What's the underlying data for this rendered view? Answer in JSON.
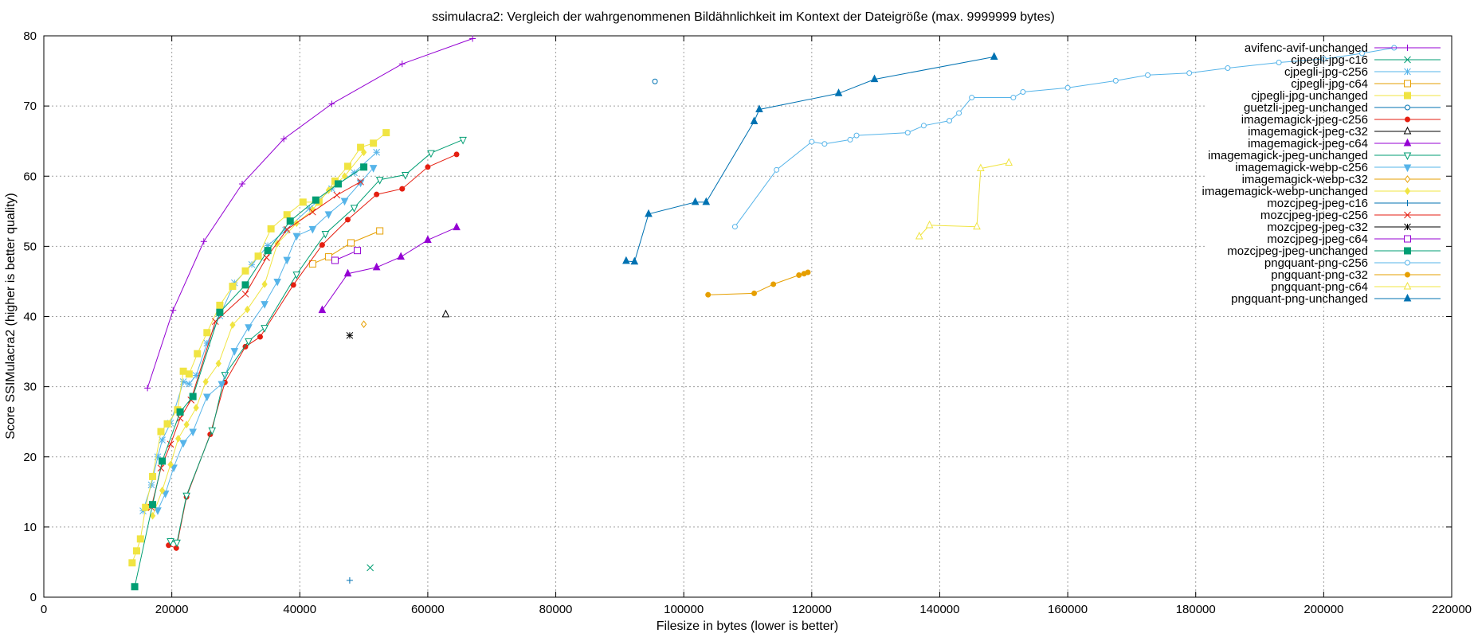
{
  "chart_data": {
    "type": "line",
    "title": "ssimulacra2: Vergleich der wahrgenommenen Bildähnlichkeit im Kontext der Dateigröße (max. 9999999 bytes)",
    "xlabel": "Filesize in bytes (lower is better)",
    "ylabel": "Score SSIMulacra2 (higher is better quality)",
    "xlim": [
      0,
      220000
    ],
    "ylim": [
      0,
      80
    ],
    "xticks": [
      0,
      20000,
      40000,
      60000,
      80000,
      100000,
      120000,
      140000,
      160000,
      180000,
      200000,
      220000
    ],
    "yticks": [
      0,
      10,
      20,
      30,
      40,
      50,
      60,
      70,
      80
    ],
    "grid": true,
    "legend_position": "top-right",
    "series": [
      {
        "name": "avifenc-avif-unchanged",
        "color": "#9400d3",
        "marker": "plus",
        "x": [
          16200,
          20200,
          25000,
          31000,
          37500,
          45000,
          56000,
          67000
        ],
        "y": [
          29.8,
          40.9,
          50.7,
          58.9,
          65.3,
          70.3,
          76.0,
          79.6
        ]
      },
      {
        "name": "cjpegli-jpg-c16",
        "color": "#009e73",
        "marker": "cross",
        "x": [
          51000
        ],
        "y": [
          4.2
        ]
      },
      {
        "name": "cjpegli-jpg-c256",
        "color": "#56b4e9",
        "marker": "star",
        "x": [
          15500,
          16800,
          17800,
          18500,
          19800,
          21800,
          22700,
          23800,
          25500,
          27500,
          29800,
          32500,
          35000,
          37800,
          41500,
          45000,
          48500,
          52000
        ],
        "y": [
          12.3,
          16.0,
          20.0,
          22.4,
          24.8,
          30.7,
          30.4,
          31.6,
          36.2,
          40.1,
          44.8,
          47.4,
          50.1,
          52.3,
          55.4,
          58.2,
          60.5,
          63.4
        ]
      },
      {
        "name": "cjpegli-jpg-c64",
        "color": "#e69f00",
        "marker": "square-open",
        "x": [
          42000,
          44500,
          48000,
          52500
        ],
        "y": [
          47.5,
          48.5,
          50.5,
          52.2
        ]
      },
      {
        "name": "cjpegli-jpg-unchanged",
        "color": "#f0e442",
        "marker": "square",
        "x": [
          13800,
          14500,
          15100,
          15900,
          17000,
          18300,
          19300,
          20900,
          21800,
          22700,
          24000,
          25500,
          27500,
          29500,
          31500,
          33500,
          35500,
          38000,
          40500,
          43000,
          45500,
          47500,
          49500,
          51500,
          53500
        ],
        "y": [
          4.9,
          6.6,
          8.3,
          12.8,
          17.2,
          23.6,
          24.7,
          26.7,
          32.2,
          31.8,
          34.7,
          37.7,
          41.6,
          44.3,
          46.5,
          48.6,
          52.5,
          54.5,
          56.3,
          56.3,
          59.3,
          61.4,
          64.1,
          64.7,
          66.2
        ]
      },
      {
        "name": "guetzli-jpeg-unchanged",
        "color": "#0072b2",
        "marker": "circle-open",
        "x": [
          95500
        ],
        "y": [
          73.5
        ]
      },
      {
        "name": "imagemagick-jpeg-c256",
        "color": "#e51e10",
        "marker": "circle",
        "x": [
          19500,
          20700,
          22300,
          26000,
          28300,
          31500,
          33800,
          39000,
          43500,
          47500,
          52000,
          56000,
          60000,
          64500
        ],
        "y": [
          7.4,
          7.0,
          14.3,
          23.2,
          30.6,
          35.7,
          37.1,
          44.5,
          50.2,
          53.8,
          57.4,
          58.2,
          61.3,
          63.1
        ]
      },
      {
        "name": "imagemagick-jpeg-c32",
        "color": "#000000",
        "marker": "triangle-open",
        "x": [
          62800
        ],
        "y": [
          40.3
        ]
      },
      {
        "name": "imagemagick-jpeg-c64",
        "color": "#9400d3",
        "marker": "triangle",
        "x": [
          43500,
          47500,
          52000,
          55800,
          60000,
          64500
        ],
        "y": [
          40.9,
          46.1,
          47.0,
          48.5,
          50.9,
          52.7
        ]
      },
      {
        "name": "imagemagick-jpeg-unchanged",
        "color": "#009e73",
        "marker": "triangle-down-open",
        "x": [
          19800,
          20800,
          22300,
          26300,
          28300,
          32000,
          34500,
          39500,
          44000,
          48500,
          52500,
          56500,
          60500,
          65500
        ],
        "y": [
          8.0,
          7.8,
          14.5,
          23.8,
          31.7,
          36.5,
          38.4,
          46.0,
          51.8,
          55.5,
          59.5,
          60.2,
          63.3,
          65.2
        ]
      },
      {
        "name": "imagemagick-webp-c256",
        "color": "#56b4e9",
        "marker": "triangle-down",
        "x": [
          17800,
          19000,
          20300,
          21800,
          23300,
          25500,
          27800,
          29800,
          32000,
          34500,
          36500,
          38000,
          39500,
          42000,
          44500,
          47000,
          49500,
          51500
        ],
        "y": [
          12.4,
          14.8,
          18.5,
          22.0,
          23.6,
          28.6,
          30.4,
          35.1,
          38.5,
          41.8,
          45.0,
          48.1,
          51.5,
          52.5,
          54.6,
          56.5,
          59.1,
          61.2
        ]
      },
      {
        "name": "imagemagick-webp-c32",
        "color": "#e69f00",
        "marker": "diamond-open",
        "x": [
          50000
        ],
        "y": [
          38.9
        ]
      },
      {
        "name": "imagemagick-webp-unchanged",
        "color": "#f0e442",
        "marker": "diamond",
        "x": [
          17000,
          18500,
          19800,
          21000,
          22300,
          23800,
          25300,
          27300,
          29500,
          31800,
          34500,
          36500,
          39500,
          42000,
          44500,
          47000,
          50000
        ],
        "y": [
          11.6,
          15.2,
          18.9,
          22.6,
          24.6,
          27.0,
          30.7,
          33.3,
          38.8,
          41.0,
          44.6,
          50.4,
          53.3,
          55.2,
          58.0,
          60.0,
          63.4
        ]
      },
      {
        "name": "mozcjpeg-jpeg-c16",
        "color": "#0072b2",
        "marker": "plus",
        "x": [
          47800
        ],
        "y": [
          2.4
        ]
      },
      {
        "name": "mozcjpeg-jpeg-c256",
        "color": "#e51e10",
        "marker": "cross",
        "x": [
          16800,
          18300,
          19800,
          21300,
          23000,
          26800,
          31500,
          34800,
          38000,
          42000,
          45800,
          49500
        ],
        "y": [
          12.8,
          18.4,
          21.8,
          25.5,
          28.1,
          39.3,
          43.2,
          48.4,
          52.4,
          54.9,
          57.3,
          59.2
        ]
      },
      {
        "name": "mozcjpeg-jpeg-c32",
        "color": "#000000",
        "marker": "star",
        "x": [
          47800
        ],
        "y": [
          37.3
        ]
      },
      {
        "name": "mozcjpeg-jpeg-c64",
        "color": "#9400d3",
        "marker": "square-open",
        "x": [
          45500,
          49000
        ],
        "y": [
          48.0,
          49.4
        ]
      },
      {
        "name": "mozcjpeg-jpeg-unchanged",
        "color": "#009e73",
        "marker": "square",
        "x": [
          14200,
          17000,
          18500,
          21300,
          23300,
          27500,
          31500,
          35000,
          38500,
          42500,
          46000,
          50000
        ],
        "y": [
          1.5,
          13.2,
          19.4,
          26.4,
          28.6,
          40.6,
          44.5,
          49.4,
          53.6,
          56.6,
          58.9,
          61.3
        ]
      },
      {
        "name": "pngquant-png-c256",
        "color": "#56b4e9",
        "marker": "circle-open",
        "x": [
          108000,
          114500,
          120000,
          122000,
          126000,
          127000,
          135000,
          137500,
          141500,
          143000,
          145000,
          151500,
          153000,
          160000,
          167500,
          172500,
          179000,
          185000,
          193000,
          200000,
          206000,
          211000
        ],
        "y": [
          52.8,
          60.9,
          64.9,
          64.6,
          65.2,
          65.8,
          66.2,
          67.2,
          67.9,
          69.0,
          71.2,
          71.2,
          72.0,
          72.6,
          73.6,
          74.4,
          74.7,
          75.4,
          76.2,
          76.7,
          77.5,
          78.3
        ]
      },
      {
        "name": "pngquant-png-c32",
        "color": "#e69f00",
        "marker": "circle",
        "x": [
          103800,
          111000,
          114000,
          118000,
          118800,
          119400
        ],
        "y": [
          43.1,
          43.3,
          44.6,
          45.9,
          46.1,
          46.3
        ]
      },
      {
        "name": "pngquant-png-c64",
        "color": "#f0e442",
        "marker": "triangle-open",
        "x": [
          136800,
          138400,
          145800,
          146400,
          150800
        ],
        "y": [
          51.4,
          53.0,
          52.8,
          61.1,
          61.9
        ]
      },
      {
        "name": "pngquant-png-unchanged",
        "color": "#0072b2",
        "marker": "triangle",
        "x": [
          91000,
          92300,
          94500,
          101800,
          103500,
          111000,
          111800,
          124200,
          129800,
          148500
        ],
        "y": [
          47.9,
          47.8,
          54.6,
          56.3,
          56.3,
          67.8,
          69.5,
          71.8,
          73.8,
          77.0
        ]
      }
    ]
  }
}
